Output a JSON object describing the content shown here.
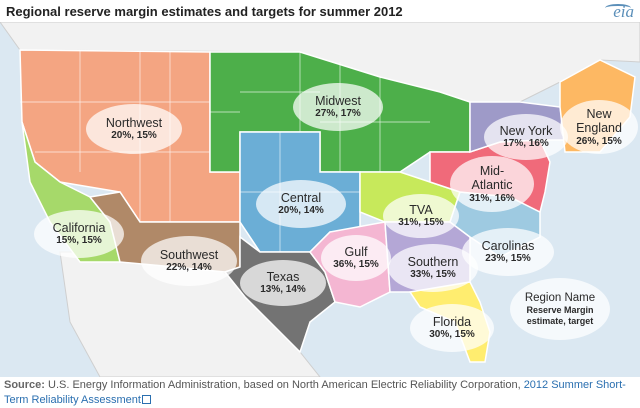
{
  "title": "Regional reserve margin estimates and targets for summer 2012",
  "logo": "eia",
  "regions": [
    {
      "id": "northwest",
      "name": "Northwest",
      "values": "20%, 15%",
      "estimate_pct": 20,
      "target_pct": 15,
      "color": "#f4a582"
    },
    {
      "id": "california",
      "name": "California",
      "values": "15%, 15%",
      "estimate_pct": 15,
      "target_pct": 15,
      "color": "#a6d96a"
    },
    {
      "id": "southwest",
      "name": "Southwest",
      "values": "22%, 14%",
      "estimate_pct": 22,
      "target_pct": 14,
      "color": "#b08968"
    },
    {
      "id": "midwest",
      "name": "Midwest",
      "values": "27%, 17%",
      "estimate_pct": 27,
      "target_pct": 17,
      "color": "#4daf4a"
    },
    {
      "id": "central",
      "name": "Central",
      "values": "20%, 14%",
      "estimate_pct": 20,
      "target_pct": 14,
      "color": "#6baed6"
    },
    {
      "id": "texas",
      "name": "Texas",
      "values": "13%, 14%",
      "estimate_pct": 13,
      "target_pct": 14,
      "color": "#737373"
    },
    {
      "id": "gulf",
      "name": "Gulf",
      "values": "36%, 15%",
      "estimate_pct": 36,
      "target_pct": 15,
      "color": "#f4b6d2"
    },
    {
      "id": "tva",
      "name": "TVA",
      "values": "31%, 15%",
      "estimate_pct": 31,
      "target_pct": 15,
      "color": "#c7e95b"
    },
    {
      "id": "southern",
      "name": "Southern",
      "values": "33%, 15%",
      "estimate_pct": 33,
      "target_pct": 15,
      "color": "#b4a7d6"
    },
    {
      "id": "carolinas",
      "name": "Carolinas",
      "values": "23%, 15%",
      "estimate_pct": 23,
      "target_pct": 15,
      "color": "#9ecae1"
    },
    {
      "id": "florida",
      "name": "Florida",
      "values": "30%, 15%",
      "estimate_pct": 30,
      "target_pct": 15,
      "color": "#ffed6f"
    },
    {
      "id": "mid-atlantic",
      "name": "Mid-\nAtlantic",
      "values": "31%, 16%",
      "estimate_pct": 31,
      "target_pct": 16,
      "color": "#f06a7a"
    },
    {
      "id": "new-york",
      "name": "New York",
      "values": "17%, 16%",
      "estimate_pct": 17,
      "target_pct": 16,
      "color": "#9e9ac8"
    },
    {
      "id": "new-england",
      "name": "New\nEngland",
      "values": "26%, 15%",
      "estimate_pct": 26,
      "target_pct": 15,
      "color": "#fdb863"
    }
  ],
  "legend": {
    "name": "Region Name",
    "values": "Reserve Margin\nestimate, target"
  },
  "colors": {
    "water": "#dbe8f2",
    "land_outside": "#f2f2f2",
    "border": "#ffffff",
    "midwest_dark": "#2e8b3a"
  },
  "footer": {
    "source_label": "Source:",
    "source_text": " U.S. Energy Information Administration, based on North American Electric Reliability Corporation, ",
    "link_text": "2012 Summer Short-Term Reliability Assessment"
  }
}
